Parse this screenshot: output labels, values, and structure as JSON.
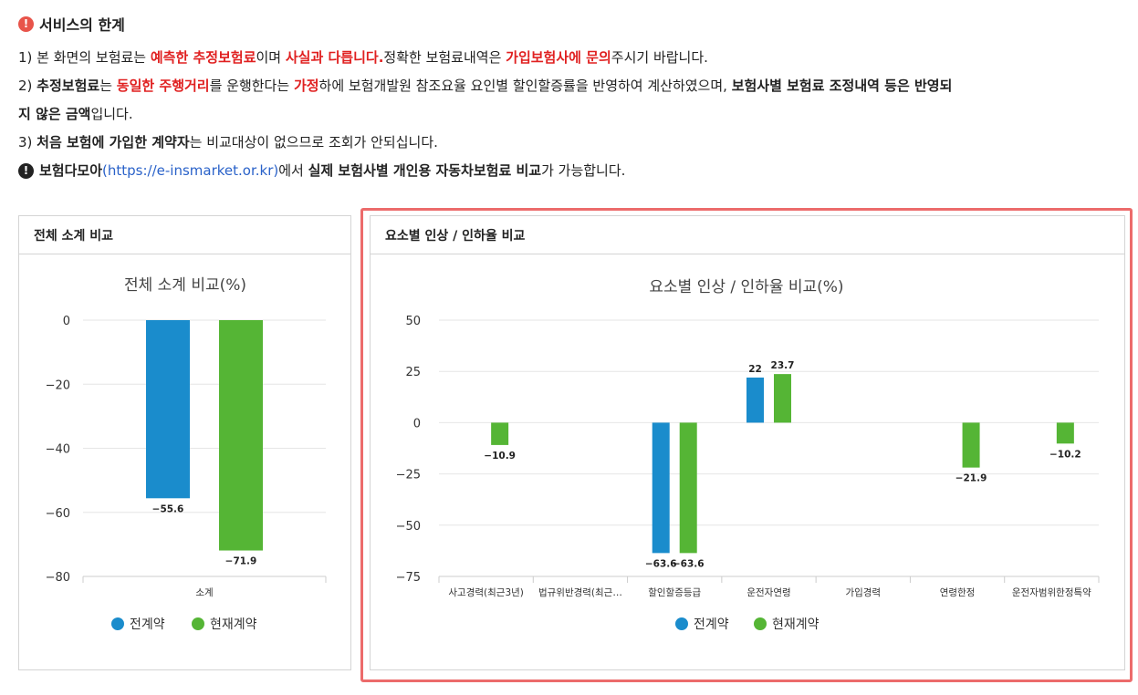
{
  "notice": {
    "title": "서비스의 한계",
    "line1": {
      "p1": "1) 본 화면의 보험료는 ",
      "r1": "예측한 추정보험료",
      "p2": "이며 ",
      "r2": "사실과 다릅니다.",
      "p3": "정확한 보험료내역은 ",
      "r3": "가입보험사에 문의",
      "p4": "주시기 바랍니다."
    },
    "line2": {
      "p1": "2) ",
      "b1": "추정보험료",
      "p2": "는 ",
      "r1": "동일한 주행거리",
      "p3": "를 운행한다는 ",
      "r2": "가정",
      "p4": "하에 보험개발원 참조요율 요인별 할인할증률을 반영하여 계산하였으며, ",
      "b2": "보험사별 보험료 조정내역 등은 반영되",
      "b3": "지 않은 금액",
      "p5": "입니다."
    },
    "line3": {
      "p1": "3) ",
      "b1": "처음 보험에 가입한 계약자",
      "p2": "는 비교대상이 없으므로 조회가 안되십니다."
    },
    "line4": {
      "b1": "보험다모아",
      "link": "(https://e-insmarket.or.kr)",
      "p1": "에서 ",
      "b2": "실제 보험사별 개인용 자동차보험료 비교",
      "p2": "가 가능합니다."
    }
  },
  "panel_left": {
    "header": "전체 소계 비교"
  },
  "panel_right": {
    "header": "요소별 인상 / 인하율 비교"
  },
  "colors": {
    "prev": "#1a8ccc",
    "curr": "#55b535",
    "highlight": "#ec6b6b",
    "alert": "#e8544a"
  },
  "chart_data": [
    {
      "type": "bar",
      "title": "전체 소계 비교(%)",
      "categories": [
        "소계"
      ],
      "series": [
        {
          "name": "전계약",
          "values": [
            -55.6
          ],
          "labels": [
            "−55.6"
          ]
        },
        {
          "name": "현재계약",
          "values": [
            -71.9
          ],
          "labels": [
            "−71.9"
          ]
        }
      ],
      "ylim": [
        -80,
        0
      ],
      "yticks": [
        0,
        -20,
        -40,
        -60,
        -80
      ],
      "ytick_labels": [
        "0",
        "−20",
        "−40",
        "−60",
        "−80"
      ],
      "legend": "bottom"
    },
    {
      "type": "bar",
      "title": "요소별 인상 / 인하율 비교(%)",
      "categories": [
        "사고경력(최근3년)",
        "법규위반경력(최근…",
        "할인할증등급",
        "운전자연령",
        "가입경력",
        "연령한정",
        "운전자범위한정특약"
      ],
      "series": [
        {
          "name": "전계약",
          "values": [
            null,
            null,
            -63.6,
            22,
            null,
            null,
            null
          ],
          "labels": [
            "",
            "",
            "−63.6",
            "22",
            "",
            "",
            ""
          ]
        },
        {
          "name": "현재계약",
          "values": [
            -10.9,
            null,
            -63.6,
            23.7,
            null,
            -21.9,
            -10.2
          ],
          "labels": [
            "−10.9",
            "",
            "−63.6",
            "23.7",
            "",
            "−21.9",
            "−10.2"
          ]
        }
      ],
      "ylim": [
        -75,
        50
      ],
      "yticks": [
        50,
        25,
        0,
        -25,
        -50,
        -75
      ],
      "ytick_labels": [
        "50",
        "25",
        "0",
        "−25",
        "−50",
        "−75"
      ],
      "legend": "bottom"
    }
  ]
}
